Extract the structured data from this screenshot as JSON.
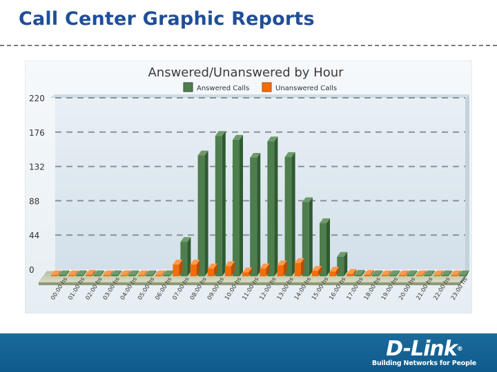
{
  "slide": {
    "title": "Call Center Graphic Reports"
  },
  "brand": {
    "logo": "D-Link",
    "tagline": "Building Networks for People"
  },
  "colors": {
    "answered": "#4e7d4e",
    "unanswered": "#f26d0a",
    "title": "#1f4e9a",
    "footer": "#14649a"
  },
  "chart_data": {
    "type": "bar",
    "title": "Answered/Unanswered by Hour",
    "xlabel": "",
    "ylabel": "",
    "ylim": [
      0,
      220
    ],
    "yticks": [
      0,
      44,
      88,
      132,
      176,
      220
    ],
    "grid": true,
    "legend_position": "top",
    "categories": [
      "00:00 hs",
      "01:00 hs",
      "02:00 hs",
      "03:00 hs",
      "04:00 hs",
      "05:00 hs",
      "06:00 hs",
      "07:00 hs",
      "08:00 hs",
      "09:00 hs",
      "10:00 hs",
      "11:00 hs",
      "12:00 hs",
      "13:00 hs",
      "14:00 hs",
      "15:00 hs",
      "16:00 hs",
      "17:00 hs",
      "18:00 hs",
      "19:00 hs",
      "20:00 hs",
      "21:00 hs",
      "22:00 hs",
      "23:00 hs"
    ],
    "series": [
      {
        "name": "Answered Calls",
        "color": "#4e7d4e",
        "values": [
          0,
          0,
          0,
          0,
          0,
          0,
          0,
          44,
          155,
          180,
          175,
          152,
          173,
          153,
          95,
          68,
          25,
          2,
          0,
          0,
          0,
          0,
          0,
          0
        ]
      },
      {
        "name": "Unanswered Calls",
        "color": "#f26d0a",
        "values": [
          1,
          1,
          2,
          1,
          0,
          0,
          1,
          15,
          15,
          10,
          13,
          5,
          10,
          14,
          17,
          7,
          6,
          3,
          2,
          0,
          1,
          0,
          1,
          1
        ]
      }
    ]
  }
}
